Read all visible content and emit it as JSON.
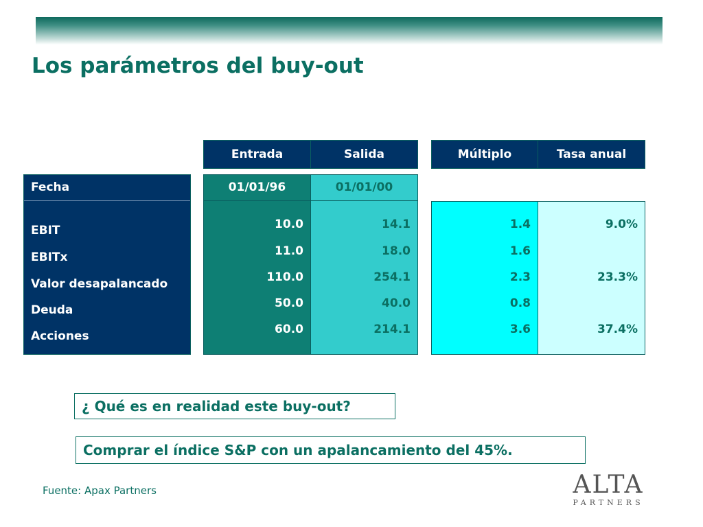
{
  "title": "Los parámetros del buy-out",
  "table": {
    "headers": {
      "entrada": "Entrada",
      "salida": "Salida",
      "multiplo": "Múltiplo",
      "tasa_anual": "Tasa anual"
    },
    "fecha_label": "Fecha",
    "fecha_entrada": "01/01/96",
    "fecha_salida": "01/01/00",
    "rows": [
      {
        "label": "EBIT",
        "entrada": "10.0",
        "salida": "14.1",
        "multiplo": "1.4",
        "tasa": "9.0%"
      },
      {
        "label": "EBITx",
        "entrada": "11.0",
        "salida": "18.0",
        "multiplo": "1.6",
        "tasa": ""
      },
      {
        "label": "Valor desapalancado",
        "entrada": "110.0",
        "salida": "254.1",
        "multiplo": "2.3",
        "tasa": "23.3%"
      },
      {
        "label": "Deuda",
        "entrada": "50.0",
        "salida": "40.0",
        "multiplo": "0.8",
        "tasa": ""
      },
      {
        "label": "Acciones",
        "entrada": "60.0",
        "salida": "214.1",
        "multiplo": "3.6",
        "tasa": "37.4%"
      }
    ]
  },
  "question": "¿ Qué es en realidad este buy-out?",
  "answer": "Comprar el índice S&P con un apalancamiento del 45%.",
  "source": "Fuente: Apax Partners",
  "logo": {
    "name": "ALTA",
    "sub": "PARTNERS"
  },
  "colors": {
    "title": "#0b6f62",
    "header_bg": "#003366",
    "entrada_bg": "#0e7f74",
    "salida_bg": "#33cccc",
    "multiplo_bg": "#00ffff",
    "tasa_bg": "#ccffff"
  }
}
